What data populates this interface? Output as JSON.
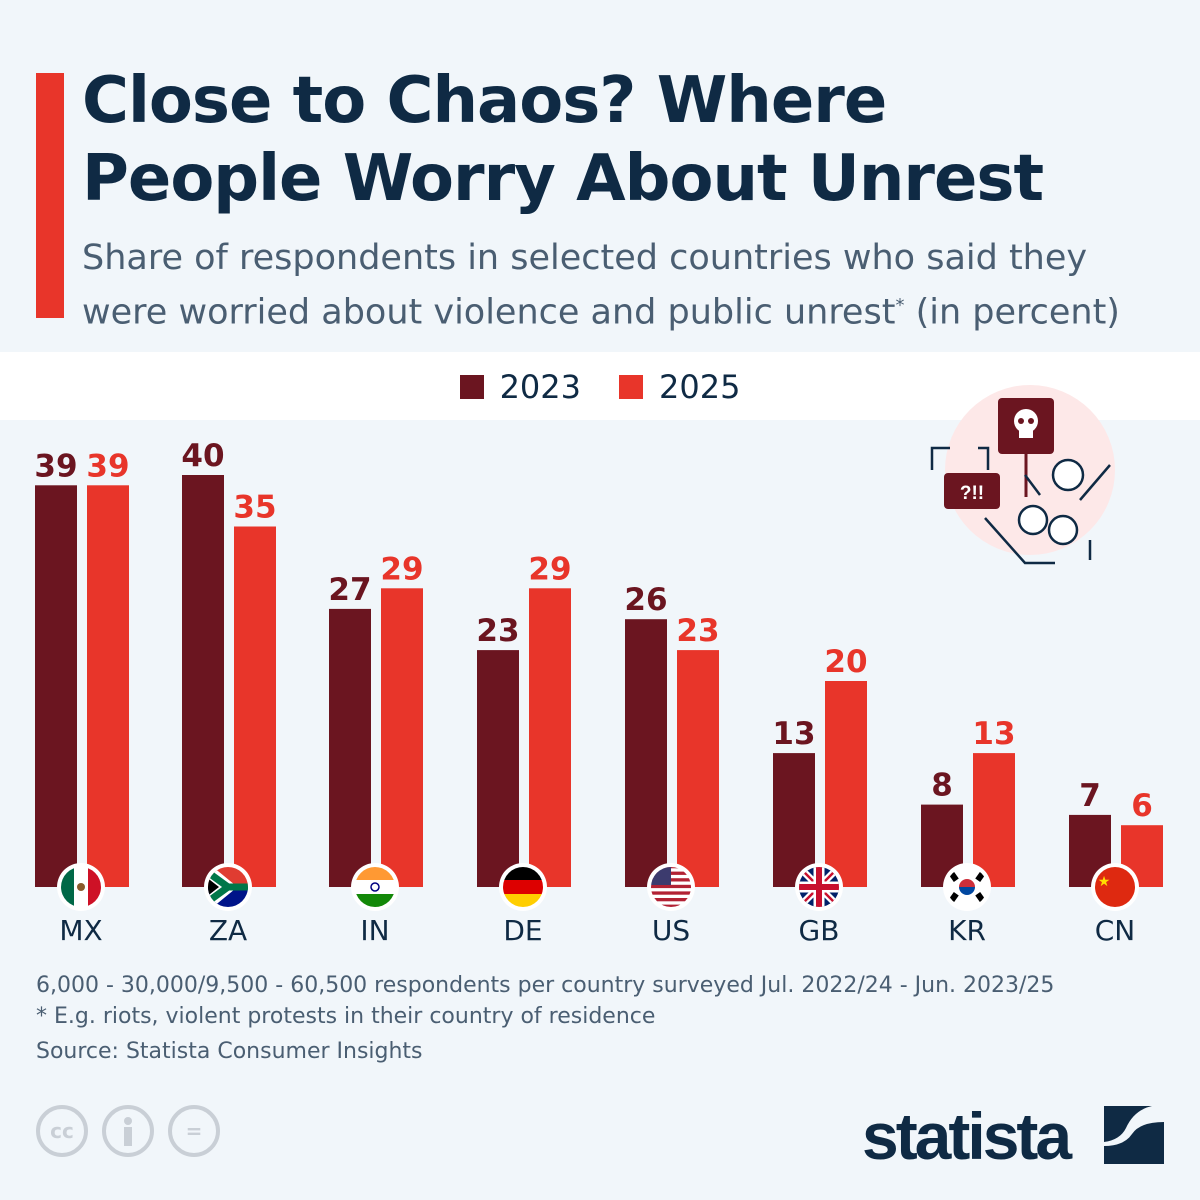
{
  "header": {
    "title_line1": "Close to Chaos? Where",
    "title_line2": "People Worry About Unrest",
    "subtitle_line1": "Share of respondents in selected countries who said they",
    "subtitle_line2a": "were worried about violence and public unrest",
    "subtitle_sup": "*",
    "subtitle_line2b": " (in percent)"
  },
  "colors": {
    "series_2023": "#6b1520",
    "series_2025": "#e8352a",
    "title": "#0f2a44",
    "accent": "#e8352a"
  },
  "illustration": {
    "icon": "protest-skull-sign-icon",
    "speech_text": "?!!"
  },
  "chart_data": {
    "type": "bar",
    "title": "Close to Chaos? Where People Worry About Unrest",
    "categories": [
      "MX",
      "ZA",
      "IN",
      "DE",
      "US",
      "GB",
      "KR",
      "CN"
    ],
    "series": [
      {
        "name": "2023",
        "color": "#6b1520",
        "values": [
          39,
          40,
          27,
          23,
          26,
          13,
          8,
          7
        ]
      },
      {
        "name": "2025",
        "color": "#e8352a",
        "values": [
          39,
          35,
          29,
          29,
          23,
          20,
          13,
          6
        ]
      }
    ],
    "ylim": [
      0,
      40
    ],
    "grid": false,
    "legend": "top-center",
    "data_labels": true
  },
  "footer": {
    "note1": "6,000 - 30,000/9,500 - 60,500 respondents per country surveyed Jul. 2022/24 - Jun. 2023/25",
    "note2": "* E.g. riots, violent protests in their country of residence",
    "source": "Source: Statista Consumer Insights",
    "logo": "statista",
    "license_icons": [
      "cc-icon",
      "attribution-icon",
      "no-derivatives-icon"
    ],
    "cc_text": "cc",
    "nd_text": "="
  }
}
